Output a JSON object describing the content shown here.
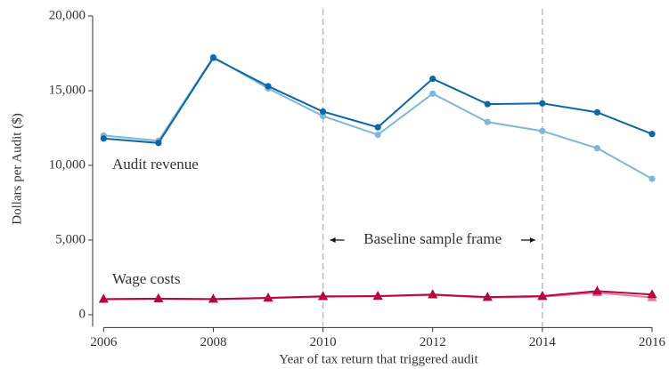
{
  "chart_data": {
    "type": "line",
    "xlabel": "Year of tax return that triggered audit",
    "ylabel": "Dollars per Audit ($)",
    "x": [
      2006,
      2007,
      2008,
      2009,
      2010,
      2011,
      2012,
      2013,
      2014,
      2015,
      2016
    ],
    "xlim": [
      2005.8,
      2016
    ],
    "xticks": [
      2006,
      2008,
      2010,
      2012,
      2014,
      2016
    ],
    "ylim": [
      -800,
      20000
    ],
    "yticks": [
      0,
      {
        "value": 5000,
        "label": "5,000"
      },
      {
        "value": 10000,
        "label": "10,000"
      },
      {
        "value": 15000,
        "label": "15,000"
      },
      {
        "value": 20000,
        "label": "20,000"
      }
    ],
    "series": [
      {
        "color": "#7fb6db",
        "marker": "circle",
        "values": [
          12000,
          11650,
          17250,
          15150,
          13300,
          12050,
          14800,
          12900,
          12300,
          11150,
          9100
        ]
      },
      {
        "color": "#0b67a6",
        "marker": "circle",
        "values": [
          11800,
          11500,
          17200,
          15300,
          13600,
          12550,
          15800,
          14100,
          14150,
          13550,
          12100
        ]
      },
      {
        "color": "#e07c9c",
        "marker": "triangle",
        "values": [
          1030,
          1060,
          1040,
          1110,
          1200,
          1230,
          1320,
          1150,
          1200,
          1480,
          1150
        ]
      },
      {
        "color": "#b8063d",
        "marker": "triangle",
        "values": [
          1050,
          1080,
          1050,
          1130,
          1230,
          1250,
          1350,
          1180,
          1250,
          1580,
          1350
        ]
      }
    ],
    "vlines": [
      2010,
      2014
    ],
    "annotations": [
      {
        "text": "Audit revenue",
        "color": "#2b7bb9"
      },
      {
        "text": "Wage costs",
        "color": "#b8062a"
      },
      {
        "text": "Baseline sample frame",
        "color": "#111111"
      }
    ]
  }
}
